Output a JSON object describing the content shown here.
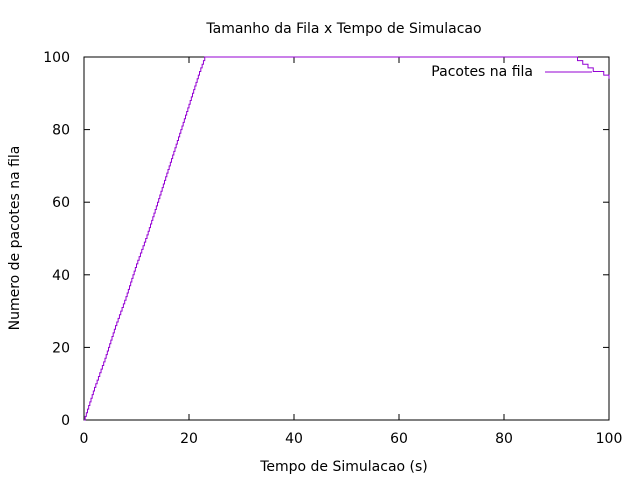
{
  "chart_data": {
    "type": "line",
    "style": "step",
    "title": "Tamanho da Fila x Tempo de Simulacao",
    "xlabel": "Tempo de Simulacao (s)",
    "ylabel": "Numero de pacotes na fila",
    "xlim": [
      0,
      100
    ],
    "ylim": [
      0,
      100
    ],
    "xticks": [
      0,
      20,
      40,
      60,
      80,
      100
    ],
    "yticks": [
      0,
      20,
      40,
      60,
      80,
      100
    ],
    "grid": false,
    "legend_position": "top-right",
    "series": [
      {
        "name": "Pacotes na fila",
        "color": "#9400d3",
        "points": [
          [
            0,
            0
          ],
          [
            2,
            9
          ],
          [
            4,
            17
          ],
          [
            6,
            26
          ],
          [
            8,
            34
          ],
          [
            10,
            43
          ],
          [
            12,
            51
          ],
          [
            14,
            60
          ],
          [
            16,
            69
          ],
          [
            18,
            78
          ],
          [
            20,
            87
          ],
          [
            22,
            96
          ],
          [
            23,
            100
          ],
          [
            93,
            100
          ],
          [
            94,
            99
          ],
          [
            95,
            98
          ],
          [
            96,
            97
          ],
          [
            97,
            96
          ],
          [
            98,
            96
          ],
          [
            99,
            95
          ],
          [
            100,
            94
          ]
        ]
      }
    ]
  }
}
